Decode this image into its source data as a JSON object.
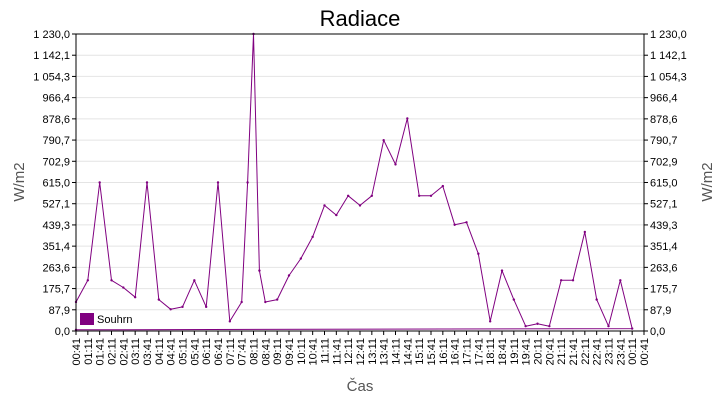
{
  "chart_data": {
    "type": "line",
    "title": "Radiace",
    "xlabel": "Čas",
    "ylabel_left": "W/m2",
    "ylabel_right": "W/m2",
    "ylim": [
      0,
      1230
    ],
    "y_ticks": [
      "0,0",
      "87,9",
      "175,7",
      "263,6",
      "351,4",
      "439,3",
      "527,1",
      "615,0",
      "702,9",
      "790,7",
      "878,6",
      "966,4",
      "1 054,3",
      "1 142,1",
      "1 230,0"
    ],
    "x_ticks": [
      "00:41",
      "01:11",
      "01:41",
      "02:11",
      "02:41",
      "03:11",
      "03:41",
      "04:11",
      "04:41",
      "05:11",
      "05:41",
      "06:11",
      "06:41",
      "07:11",
      "07:41",
      "08:11",
      "08:41",
      "09:11",
      "09:41",
      "10:11",
      "10:41",
      "11:11",
      "11:41",
      "12:11",
      "12:41",
      "13:11",
      "13:41",
      "14:11",
      "14:41",
      "15:11",
      "15:41",
      "16:11",
      "16:41",
      "17:11",
      "17:41",
      "18:11",
      "18:41",
      "19:11",
      "19:41",
      "20:11",
      "20:41",
      "21:11",
      "21:41",
      "22:11",
      "22:41",
      "23:11",
      "23:41",
      "00:11",
      "00:41"
    ],
    "grid": true,
    "legend_position": "bottom-left",
    "series": [
      {
        "name": "Souhrn",
        "color": "#800080",
        "x": [
          "00:41",
          "01:11",
          "01:41",
          "02:11",
          "02:41",
          "03:11",
          "03:41",
          "04:11",
          "04:41",
          "05:11",
          "05:41",
          "06:11",
          "06:41",
          "07:11",
          "07:41",
          "07:56",
          "08:11",
          "08:26",
          "08:41",
          "09:11",
          "09:41",
          "10:11",
          "10:41",
          "11:11",
          "11:41",
          "12:11",
          "12:41",
          "13:11",
          "13:41",
          "14:11",
          "14:41",
          "15:11",
          "15:41",
          "16:11",
          "16:41",
          "17:11",
          "17:41",
          "18:11",
          "18:41",
          "19:11",
          "19:41",
          "20:11",
          "20:41",
          "21:11",
          "21:41",
          "22:11",
          "22:41",
          "23:11",
          "23:41",
          "00:11",
          "00:41"
        ],
        "values": [
          120,
          210,
          615,
          210,
          180,
          140,
          615,
          130,
          90,
          100,
          210,
          100,
          615,
          40,
          120,
          615,
          1230,
          250,
          120,
          130,
          230,
          300,
          390,
          520,
          480,
          560,
          520,
          560,
          790,
          690,
          880,
          560,
          560,
          600,
          440,
          450,
          320,
          40,
          250,
          130,
          20,
          30,
          20,
          210,
          210,
          410,
          130,
          20,
          210,
          10,
          5
        ]
      }
    ]
  }
}
